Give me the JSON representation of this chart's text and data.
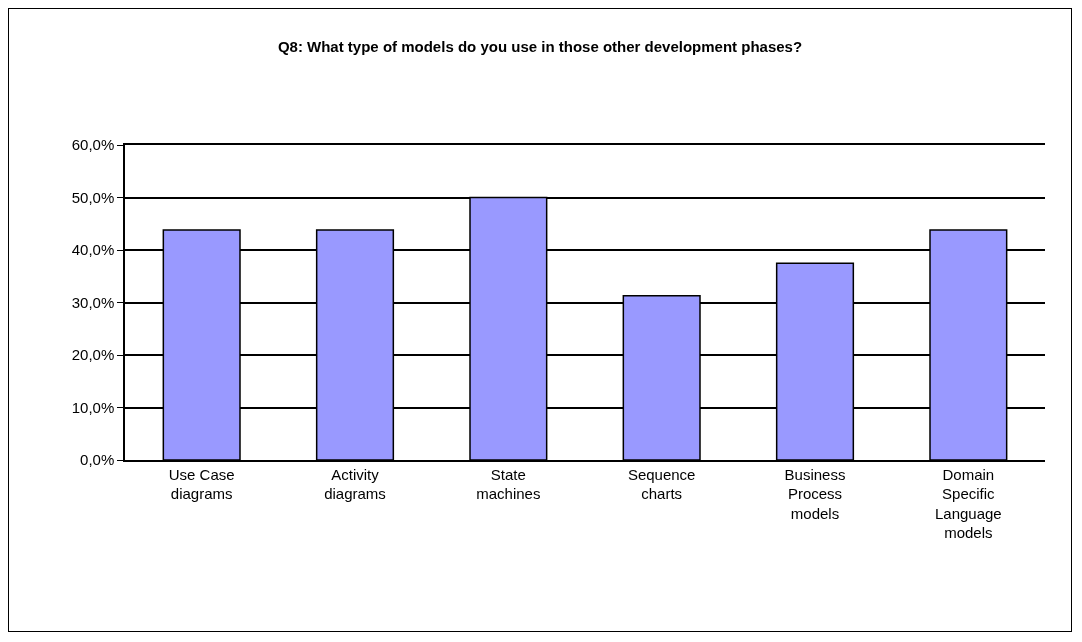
{
  "chart_data": {
    "type": "bar",
    "title": "Q8: What type of models do you use in those other development phases?",
    "categories": [
      "Use Case diagrams",
      "Activity diagrams",
      "State machines",
      "Sequence charts",
      "Business Process models",
      "Domain Specific Language models"
    ],
    "values": [
      43.8,
      43.8,
      50,
      31.3,
      37.5,
      43.8
    ],
    "color": "#9999ff",
    "ylim": [
      0,
      60
    ],
    "yticks": [
      {
        "value": 0,
        "label": "0,0%"
      },
      {
        "value": 10,
        "label": "10,0%"
      },
      {
        "value": 20,
        "label": "20,0%"
      },
      {
        "value": 30,
        "label": "30,0%"
      },
      {
        "value": 40,
        "label": "40,0%"
      },
      {
        "value": 50,
        "label": "50,0%"
      },
      {
        "value": 60,
        "label": "60,0%"
      }
    ],
    "grid": "y"
  }
}
